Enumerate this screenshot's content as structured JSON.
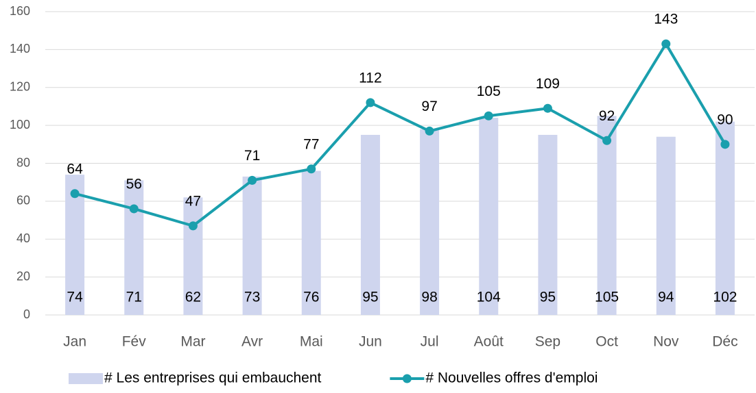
{
  "chart_data": {
    "type": "bar",
    "categories": [
      "Jan",
      "Fév",
      "Mar",
      "Avr",
      "Mai",
      "Jun",
      "Jul",
      "Août",
      "Sep",
      "Oct",
      "Nov",
      "Déc"
    ],
    "series": [
      {
        "name": "# Les entreprises qui embauchent",
        "type": "bar",
        "color": "#cfd5ee",
        "values": [
          74,
          71,
          62,
          73,
          76,
          95,
          98,
          104,
          95,
          105,
          94,
          102
        ]
      },
      {
        "name": "# Nouvelles offres d'emploi",
        "type": "line",
        "color": "#1a9fad",
        "values": [
          64,
          56,
          47,
          71,
          77,
          112,
          97,
          105,
          109,
          92,
          143,
          90
        ]
      }
    ],
    "ylim": [
      0,
      160
    ],
    "yticks": [
      0,
      20,
      40,
      60,
      80,
      100,
      120,
      140,
      160
    ],
    "grid": true,
    "legend": "bottom"
  }
}
